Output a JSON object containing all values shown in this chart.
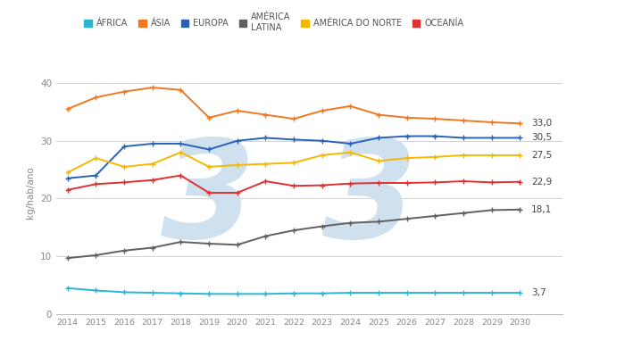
{
  "years": [
    2014,
    2015,
    2016,
    2017,
    2018,
    2019,
    2020,
    2021,
    2022,
    2023,
    2024,
    2025,
    2026,
    2027,
    2028,
    2029,
    2030
  ],
  "africa": [
    4.5,
    4.1,
    3.8,
    3.7,
    3.6,
    3.5,
    3.5,
    3.5,
    3.6,
    3.6,
    3.7,
    3.7,
    3.7,
    3.7,
    3.7,
    3.7,
    3.7
  ],
  "asia": [
    35.5,
    37.5,
    38.5,
    39.2,
    38.8,
    34.0,
    35.2,
    34.5,
    33.8,
    35.2,
    36.0,
    34.5,
    34.0,
    33.8,
    33.5,
    33.2,
    33.0
  ],
  "europa": [
    23.5,
    24.0,
    29.0,
    29.5,
    29.5,
    28.5,
    30.0,
    30.5,
    30.2,
    30.0,
    29.5,
    30.5,
    30.8,
    30.8,
    30.5,
    30.5,
    30.5
  ],
  "america_latina": [
    9.7,
    10.2,
    11.0,
    11.5,
    12.5,
    12.2,
    12.0,
    13.5,
    14.5,
    15.2,
    15.8,
    16.0,
    16.5,
    17.0,
    17.5,
    18.0,
    18.1
  ],
  "america_norte": [
    24.5,
    27.0,
    25.5,
    26.0,
    28.0,
    25.5,
    25.8,
    26.0,
    26.2,
    27.5,
    28.0,
    26.5,
    27.0,
    27.2,
    27.5,
    27.5,
    27.5
  ],
  "oceania": [
    21.5,
    22.5,
    22.8,
    23.2,
    24.0,
    21.0,
    21.0,
    23.0,
    22.2,
    22.3,
    22.6,
    22.7,
    22.7,
    22.8,
    23.0,
    22.8,
    22.9
  ],
  "colors": {
    "africa": "#29b6d3",
    "asia": "#f07820",
    "europa": "#2962b8",
    "america_latina": "#606060",
    "america_norte": "#f5b800",
    "oceania": "#e03030"
  },
  "labels": {
    "africa": "ÁFRICA",
    "asia": "ÁSIA",
    "europa": "EUROPA",
    "america_latina": "AMÉRICA\nLATINA",
    "america_norte": "AMÉRICA DO NORTE",
    "oceania": "OCEANÍA"
  },
  "end_labels": {
    "africa": "3,7",
    "asia": "33,0",
    "europa": "30,5",
    "america_latina": "18,1",
    "america_norte": "27,5",
    "oceania": "22,9"
  },
  "ylabel": "kg/hab/ano",
  "ylim": [
    0,
    42
  ],
  "yticks": [
    0,
    10,
    20,
    30,
    40
  ],
  "background_color": "#ffffff",
  "watermark_color": "#cfe0ee",
  "end_label_color": "#444444",
  "tick_color": "#888888",
  "grid_color": "#cccccc"
}
